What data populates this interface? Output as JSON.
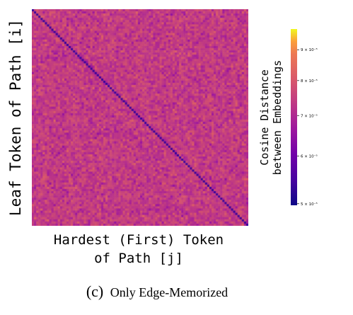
{
  "caption": {
    "label": "(c)",
    "text": "Only Edge-Memorized"
  },
  "chart_data": {
    "type": "heatmap",
    "title": "",
    "xlabel_line1": "Hardest (First) Token",
    "xlabel_line2": "of Path [j]",
    "ylabel": "Leaf Token of Path [i]",
    "colorbar": {
      "label_line1": "Cosine Distance",
      "label_line2": "between Embeddings",
      "scale": "log",
      "colormap": "plasma",
      "range": [
        4.97e-05,
        9.74e-05
      ],
      "ticks": [
        {
          "value": 5e-05,
          "label": "5 × 10⁻⁵"
        },
        {
          "value": 6e-05,
          "label": "6 × 10⁻⁵"
        },
        {
          "value": 7e-05,
          "label": "7 × 10⁻⁵"
        },
        {
          "value": 8e-05,
          "label": "8 × 10⁻⁵"
        },
        {
          "value": 9e-05,
          "label": "9 × 10⁻⁵"
        }
      ]
    },
    "matrix": {
      "rows": 100,
      "cols": 100,
      "diagonal_value": 5.35e-05,
      "off_diagonal_typical_range": [
        6.4e-05,
        8.4e-05
      ]
    },
    "grid": false
  }
}
